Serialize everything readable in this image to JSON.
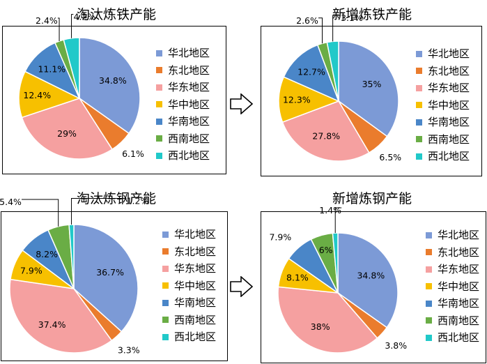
{
  "charts": [
    {
      "title": "淘汰炼铁产能"
    },
    {
      "title": "新增炼铁产能"
    },
    {
      "title": "淘汰炼钢产能"
    },
    {
      "title": "新增炼钢产能"
    }
  ],
  "colors": [
    "#7c9ad6",
    "#ea7c2d",
    "#f5a0a0",
    "#f7c000",
    "#4a86c8",
    "#6aad45",
    "#21c9c9"
  ],
  "chart_data": [
    {
      "type": "pie",
      "title": "淘汰炼铁产能",
      "categories": [
        "华北地区",
        "东北地区",
        "华东地区",
        "华中地区",
        "华南地区",
        "西南地区",
        "西北地区"
      ],
      "values": [
        34.8,
        6.1,
        29,
        12.4,
        11.1,
        2.4,
        4.2
      ],
      "labels": [
        "34.8%",
        "6.1%",
        "29%",
        "12.4%",
        "11.1%",
        "2.4%",
        "4.2%"
      ],
      "legend": "right"
    },
    {
      "type": "pie",
      "title": "新增炼铁产能",
      "categories": [
        "华北地区",
        "东北地区",
        "华东地区",
        "华中地区",
        "华南地区",
        "西南地区",
        "西北地区"
      ],
      "values": [
        35,
        6.5,
        27.8,
        12.3,
        12.7,
        2.6,
        3.1
      ],
      "labels": [
        "35%",
        "6.5%",
        "27.8%",
        "12.3%",
        "12.7%",
        "2.6%",
        "3.1%"
      ],
      "legend": "right"
    },
    {
      "type": "pie",
      "title": "淘汰炼钢产能",
      "categories": [
        "华北地区",
        "东北地区",
        "华东地区",
        "华中地区",
        "华南地区",
        "西南地区",
        "西北地区"
      ],
      "values": [
        36.7,
        3.3,
        37.4,
        7.9,
        8.2,
        5.4,
        1.2
      ],
      "labels": [
        "36.7%",
        "3.3%",
        "37.4%",
        "7.9%",
        "8.2%",
        "5.4%",
        "1.2%"
      ],
      "legend": "right"
    },
    {
      "type": "pie",
      "title": "新增炼钢产能",
      "categories": [
        "华北地区",
        "东北地区",
        "华东地区",
        "华中地区",
        "华南地区",
        "西南地区",
        "西北地区"
      ],
      "values": [
        34.8,
        3.8,
        38,
        8.1,
        7.9,
        6,
        1.4
      ],
      "labels": [
        "34.8%",
        "3.8%",
        "38%",
        "8.1%",
        "7.9%",
        "6%",
        "1.4%"
      ],
      "legend": "right"
    }
  ]
}
